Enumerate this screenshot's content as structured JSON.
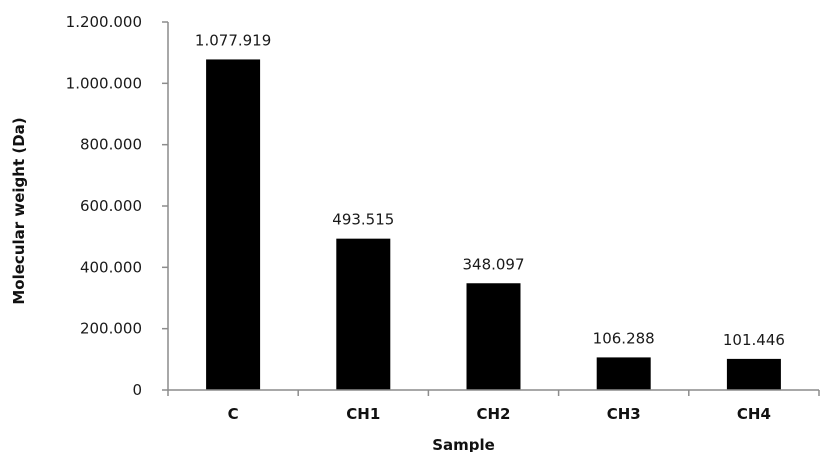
{
  "chart_data": {
    "type": "bar",
    "xlabel": "Sample",
    "ylabel": "Molecular weight (Da)",
    "categories": [
      "C",
      "CH1",
      "CH2",
      "CH3",
      "CH4"
    ],
    "values": [
      1077919,
      493515,
      348097,
      106288,
      101446
    ],
    "data_labels": [
      "1.077.919",
      "493.515",
      "348.097",
      "106.288",
      "101.446"
    ],
    "y_ticks": [
      0,
      200000,
      400000,
      600000,
      800000,
      1000000,
      1200000
    ],
    "y_tick_labels": [
      "0",
      "200.000",
      "400.000",
      "600.000",
      "800.000",
      "1.000.000",
      "1.200.000"
    ],
    "ylim": [
      0,
      1200000
    ],
    "grid": false,
    "legend": "none",
    "bar_color": "#000000"
  }
}
